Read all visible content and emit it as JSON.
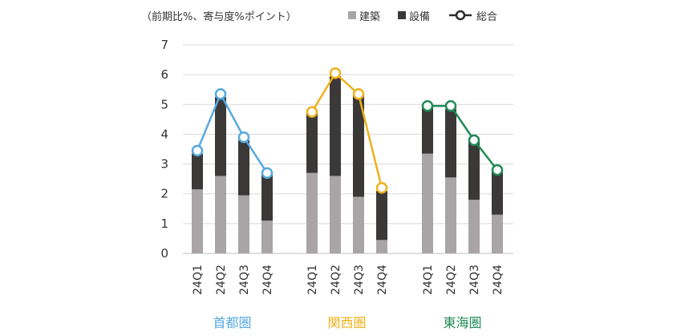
{
  "chart_data": {
    "type": "bar",
    "subtype": "stacked-bar-with-line",
    "unit_note": "（前期比%、寄与度%ポイント）",
    "ylim": [
      0,
      7
    ],
    "yticks": [
      0,
      1,
      2,
      3,
      4,
      5,
      6,
      7
    ],
    "grid": true,
    "legend_position": "top-right",
    "legend": [
      {
        "key": "building",
        "label": "建築",
        "color": "#a9a5a6",
        "kind": "bar"
      },
      {
        "key": "equipment",
        "label": "設備",
        "color": "#3b3838",
        "kind": "bar"
      },
      {
        "key": "total",
        "label": "総合",
        "color": "#2b2b2b",
        "kind": "line"
      }
    ],
    "groups": [
      {
        "name": "首都圏",
        "color": "#56a9de",
        "categories": [
          "24Q1",
          "24Q2",
          "24Q3",
          "24Q4"
        ],
        "building": [
          2.15,
          2.6,
          1.95,
          1.1
        ],
        "equipment": [
          1.2,
          2.65,
          1.85,
          1.55
        ],
        "total": [
          3.45,
          5.35,
          3.9,
          2.7
        ]
      },
      {
        "name": "関西圏",
        "color": "#eeb11c",
        "categories": [
          "24Q1",
          "24Q2",
          "24Q3",
          "24Q4"
        ],
        "building": [
          2.7,
          2.6,
          1.9,
          0.45
        ],
        "equipment": [
          2.05,
          3.35,
          3.4,
          1.65
        ],
        "total": [
          4.75,
          6.05,
          5.35,
          2.2
        ]
      },
      {
        "name": "東海圏",
        "color": "#218a55",
        "categories": [
          "24Q1",
          "24Q2",
          "24Q3",
          "24Q4"
        ],
        "building": [
          3.35,
          2.55,
          1.8,
          1.3
        ],
        "equipment": [
          1.55,
          2.3,
          1.95,
          1.45
        ],
        "total": [
          4.95,
          4.95,
          3.8,
          2.8
        ]
      }
    ]
  }
}
